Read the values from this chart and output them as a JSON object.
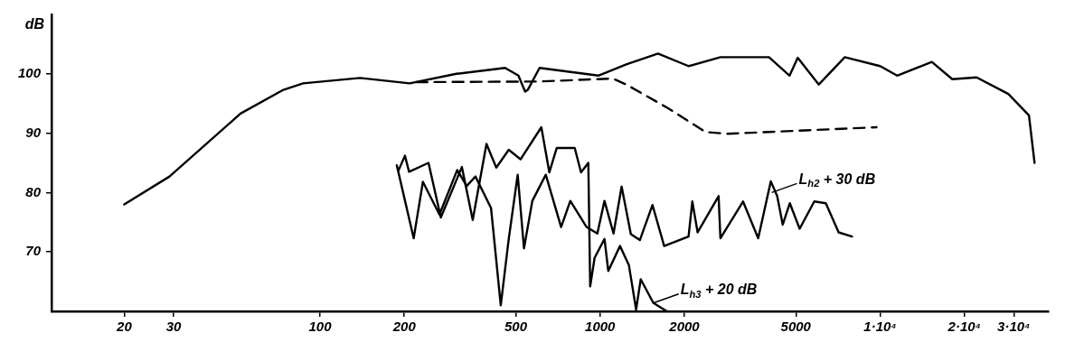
{
  "chart_data": {
    "type": "line",
    "ylabel": "dB",
    "log": "x",
    "grid": false,
    "marker": "none",
    "xlim": [
      11,
      40000
    ],
    "ylim": [
      60,
      110
    ],
    "xticks": [
      20,
      30,
      100,
      200,
      500,
      1000,
      2000,
      {
        "value": 5000,
        "label": "5000"
      },
      {
        "value": 10000,
        "label": "1·10⁴"
      },
      {
        "value": 20000,
        "label": "2·10⁴"
      },
      {
        "value": 30000,
        "label": "3·10⁴"
      }
    ],
    "yticks": [
      70,
      80,
      90,
      100
    ],
    "series": [
      {
        "color": "#000000",
        "line_style": "solid",
        "x": [
          20,
          29,
          52,
          74,
          87,
          139,
          209,
          307,
          458,
          511,
          540,
          552,
          608,
          986,
          1240,
          1610,
          2070,
          2690,
          4010,
          4750,
          5080,
          6040,
          7480,
          10000,
          11500,
          15300,
          18100,
          22100,
          28700,
          34000,
          35600
        ],
        "values": [
          78,
          82.7,
          93.3,
          97.3,
          98.4,
          99.3,
          98.4,
          100,
          101,
          99.7,
          97,
          97.3,
          101,
          99.7,
          101.6,
          103.4,
          101.3,
          102.8,
          102.8,
          99.7,
          102.7,
          98.2,
          102.8,
          101.3,
          99.7,
          102,
          99.1,
          99.4,
          96.6,
          93,
          85
        ]
      },
      {
        "color": "#000000",
        "line_style": "dashed",
        "x": [
          221,
          600,
          1110,
          1240,
          1750,
          2380,
          2830,
          9710
        ],
        "values": [
          98.6,
          98.7,
          99.2,
          98.2,
          94.2,
          90.2,
          89.9,
          91
        ]
      },
      {
        "color": "#000000",
        "line_style": "solid",
        "x": [
          188,
          216,
          233,
          267,
          309,
          334,
          359,
          408,
          442,
          472,
          508,
          535,
          573,
          640,
          726,
          783,
          895,
          978,
          1037,
          1117,
          1194,
          1288,
          1387,
          1539,
          1694,
          2070,
          2135,
          2230,
          2650,
          2690,
          3240,
          3670,
          4070,
          4290,
          4490,
          4760,
          5160,
          5820,
          6400,
          7110,
          7940
        ],
        "values": [
          84.6,
          72.3,
          81.8,
          76.3,
          83.8,
          81.1,
          82.7,
          77.4,
          61,
          72.2,
          83,
          70.6,
          78.6,
          83,
          74.2,
          78.6,
          74.2,
          73.1,
          78.6,
          73.1,
          81,
          73,
          72,
          77.9,
          71,
          72.6,
          78.5,
          73.3,
          79.4,
          72.3,
          78.5,
          72.3,
          81.9,
          79.4,
          74.6,
          78.2,
          73.9,
          78.5,
          78.2,
          73.3,
          72.6
        ]
      },
      {
        "color": "#000000",
        "line_style": "solid",
        "x": [
          191,
          201,
          208,
          244,
          270,
          321,
          351,
          393,
          426,
          472,
          520,
          617,
          659,
          700,
          812,
          855,
          908,
          922,
          956,
          1037,
          1070,
          1178,
          1267,
          1345,
          1397,
          1550,
          1733
        ],
        "values": [
          83.8,
          86.2,
          83.5,
          85,
          75.8,
          84.3,
          75.4,
          88.2,
          84.2,
          87.2,
          85.6,
          91,
          83.4,
          87.5,
          87.5,
          83.4,
          85,
          64.2,
          69,
          72.2,
          66.8,
          71,
          67.8,
          60.3,
          65.4,
          61.4,
          60
        ]
      }
    ],
    "annotations": [
      {
        "text": "L$_{h2}$ + 30 dB",
        "x": 4100,
        "y": 80
      },
      {
        "text": "L$_{h3}$ + 20 dB",
        "x": 1550,
        "y": 61.4
      }
    ]
  }
}
